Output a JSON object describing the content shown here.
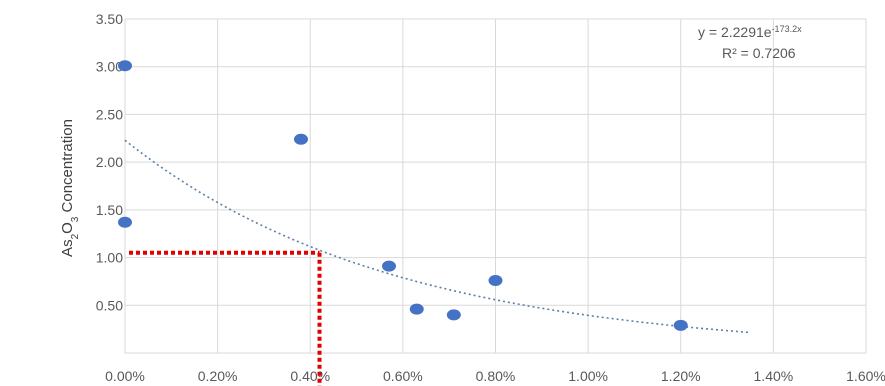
{
  "chart_data": {
    "type": "scatter",
    "y_tick_labels": [
      "3.50",
      "3.00",
      "2.50",
      "2.00",
      "1.50",
      "1.00",
      "0.50",
      ""
    ],
    "x_tick_labels": [
      "0.00%",
      "0.20%",
      "0.40%",
      "0.60%",
      "0.80%",
      "1.00%",
      "1.20%",
      "1.40%",
      "1.60%"
    ],
    "ylabel": {
      "pre": "As",
      "sub1": "2",
      "mid": "O",
      "sub2": "3",
      "post": " Concentration"
    },
    "xlim": [
      0,
      0.016
    ],
    "ylim": [
      0,
      3.5
    ],
    "grid": true,
    "series": [
      {
        "points": [
          {
            "x": 0.0,
            "y": 3.01
          },
          {
            "x": 0.0,
            "y": 1.37
          },
          {
            "x": 0.0038,
            "y": 2.24
          },
          {
            "x": 0.0057,
            "y": 0.91
          },
          {
            "x": 0.0063,
            "y": 0.46
          },
          {
            "x": 0.0071,
            "y": 0.4
          },
          {
            "x": 0.008,
            "y": 0.76
          },
          {
            "x": 0.012,
            "y": 0.29
          }
        ],
        "color": "#4472c4"
      }
    ],
    "trendline": {
      "type": "exponential",
      "a": 2.2291,
      "b": -173.2,
      "x_range": [
        0,
        0.0135
      ],
      "equation_text": "y = 2.2291e",
      "equation_exponent": "-173.2x",
      "r2_text": "R² = 0.7206",
      "color": "#5b7fa8"
    },
    "reference_lines": {
      "x": 0.0042,
      "y": 1.05,
      "color": "#e00000"
    }
  }
}
